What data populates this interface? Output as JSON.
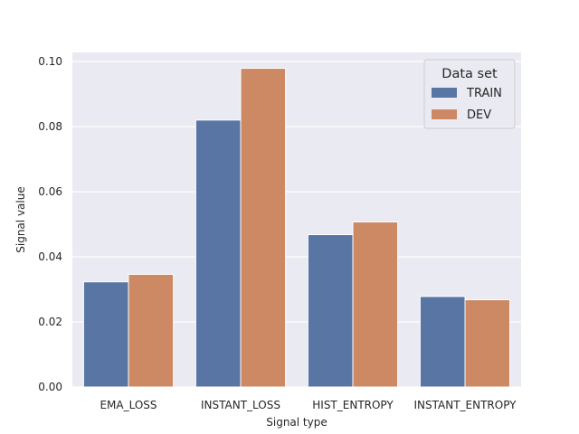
{
  "chart_data": {
    "type": "bar",
    "title": "",
    "xlabel": "Signal type",
    "ylabel": "Signal value",
    "categories": [
      "EMA_LOSS",
      "INSTANT_LOSS",
      "HIST_ENTROPY",
      "INSTANT_ENTROPY"
    ],
    "series": [
      {
        "name": "TRAIN",
        "values": [
          0.0323,
          0.082,
          0.0468,
          0.0278
        ],
        "color": "#5875a4"
      },
      {
        "name": "DEV",
        "values": [
          0.0346,
          0.0979,
          0.0507,
          0.0268
        ],
        "color": "#cc8963"
      }
    ],
    "ylim": [
      0,
      0.1
    ],
    "yticks": [
      "0.00",
      "0.02",
      "0.04",
      "0.06",
      "0.08",
      "0.10"
    ],
    "legend_title": "Data set",
    "legend_position": "top-right",
    "grid": true,
    "background_color": "#eaeaf2"
  }
}
